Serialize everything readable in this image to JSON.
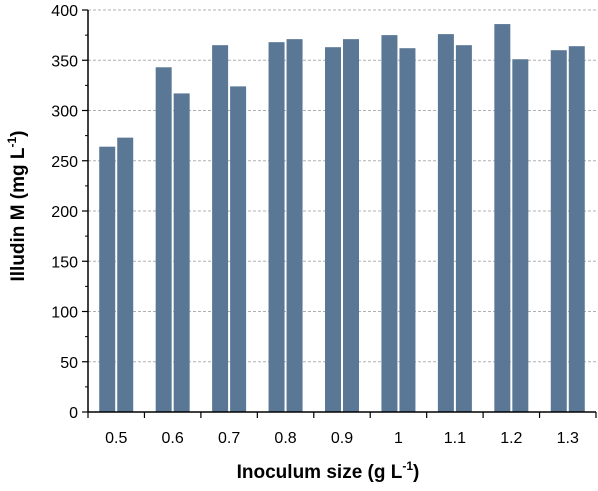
{
  "chart_data": {
    "type": "bar",
    "xlabel": "Inoculum size (g L",
    "xlabel_sup": "-1",
    "xlabel_end": ")",
    "ylabel": "Illudin M (mg L",
    "ylabel_sup": "-1",
    "ylabel_end": ")",
    "categories": [
      "0.5",
      "0.6",
      "0.7",
      "0.8",
      "0.9",
      "1",
      "1.1",
      "1.2",
      "1.3"
    ],
    "series": [
      {
        "values": [
          264,
          343,
          365,
          368,
          363,
          375,
          376,
          386,
          360
        ]
      },
      {
        "values": [
          273,
          317,
          324,
          371,
          371,
          362,
          365,
          351,
          364
        ]
      }
    ],
    "ylim": [
      0,
      400
    ],
    "yticks": [
      0,
      50,
      100,
      150,
      200,
      250,
      300,
      350,
      400
    ],
    "grid": "horizontal dashed",
    "legend": "none",
    "colors": {
      "bar": "#5a7895",
      "grid": "#b0b0b0",
      "axis": "#000000"
    }
  }
}
